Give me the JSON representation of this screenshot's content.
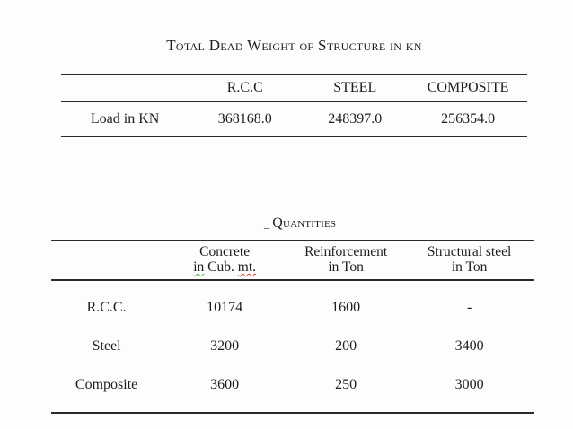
{
  "colors": {
    "text": "#1d1d1d",
    "rule": "#2b2b2b",
    "grammar_squiggle": "#3fa33f",
    "spelling_squiggle": "#d93a32",
    "background": "#fdfdfd"
  },
  "dead_weight_table": {
    "caption": "Total Dead Weight of Structure in kn",
    "column_headers": [
      "",
      "R.C.C",
      "STEEL",
      "COMPOSITE"
    ],
    "row": {
      "label": "Load in KN",
      "values": [
        "368168.0",
        "248397.0",
        "256354.0"
      ]
    }
  },
  "quantities_table": {
    "caption_prefix": "_",
    "caption": "Quantities",
    "row_header": {
      "line1": "",
      "line2": ""
    },
    "concrete_header": {
      "line1": "Concrete",
      "word_in": "in",
      "word_cub": "Cub.",
      "word_mt": "mt."
    },
    "reinforcement_header": {
      "line1": "Reinforcement",
      "line2": "in Ton"
    },
    "structural_header": {
      "line1": "Structural steel",
      "line2": "in Ton"
    },
    "rows": [
      {
        "label": "R.C.C.",
        "values": [
          "10174",
          "1600",
          "-"
        ]
      },
      {
        "label": "Steel",
        "values": [
          "3200",
          "200",
          "3400"
        ]
      },
      {
        "label": "Composite",
        "values": [
          "3600",
          "250",
          "3000"
        ]
      }
    ]
  }
}
